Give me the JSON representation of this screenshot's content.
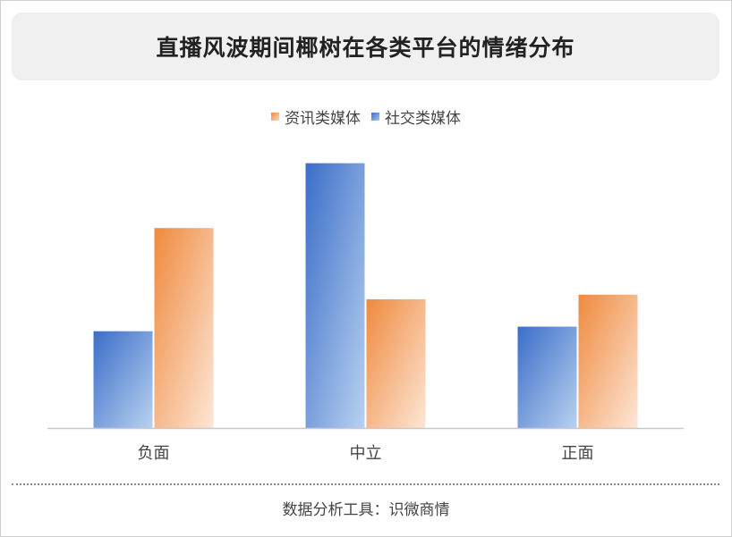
{
  "title": "直播风波期间椰树在各类平台的情绪分布",
  "source": "数据分析工具：识微商情",
  "chart_data": {
    "type": "bar",
    "categories": [
      "负面",
      "中立",
      "正面"
    ],
    "series": [
      {
        "name": "社交类媒体",
        "values": [
          1.06,
          2.9,
          1.11
        ],
        "gradient": [
          "#3b6ec8",
          "#b8d1f0"
        ]
      },
      {
        "name": "资讯类媒体",
        "values": [
          2.19,
          1.41,
          1.46
        ],
        "gradient": [
          "#ef8a3e",
          "#fde6d6"
        ]
      }
    ],
    "legend_order": [
      "资讯类媒体",
      "社交类媒体"
    ],
    "legend": "top-center",
    "ylim": [
      0,
      3.2
    ],
    "grid": false,
    "xlabel": "",
    "ylabel": ""
  }
}
